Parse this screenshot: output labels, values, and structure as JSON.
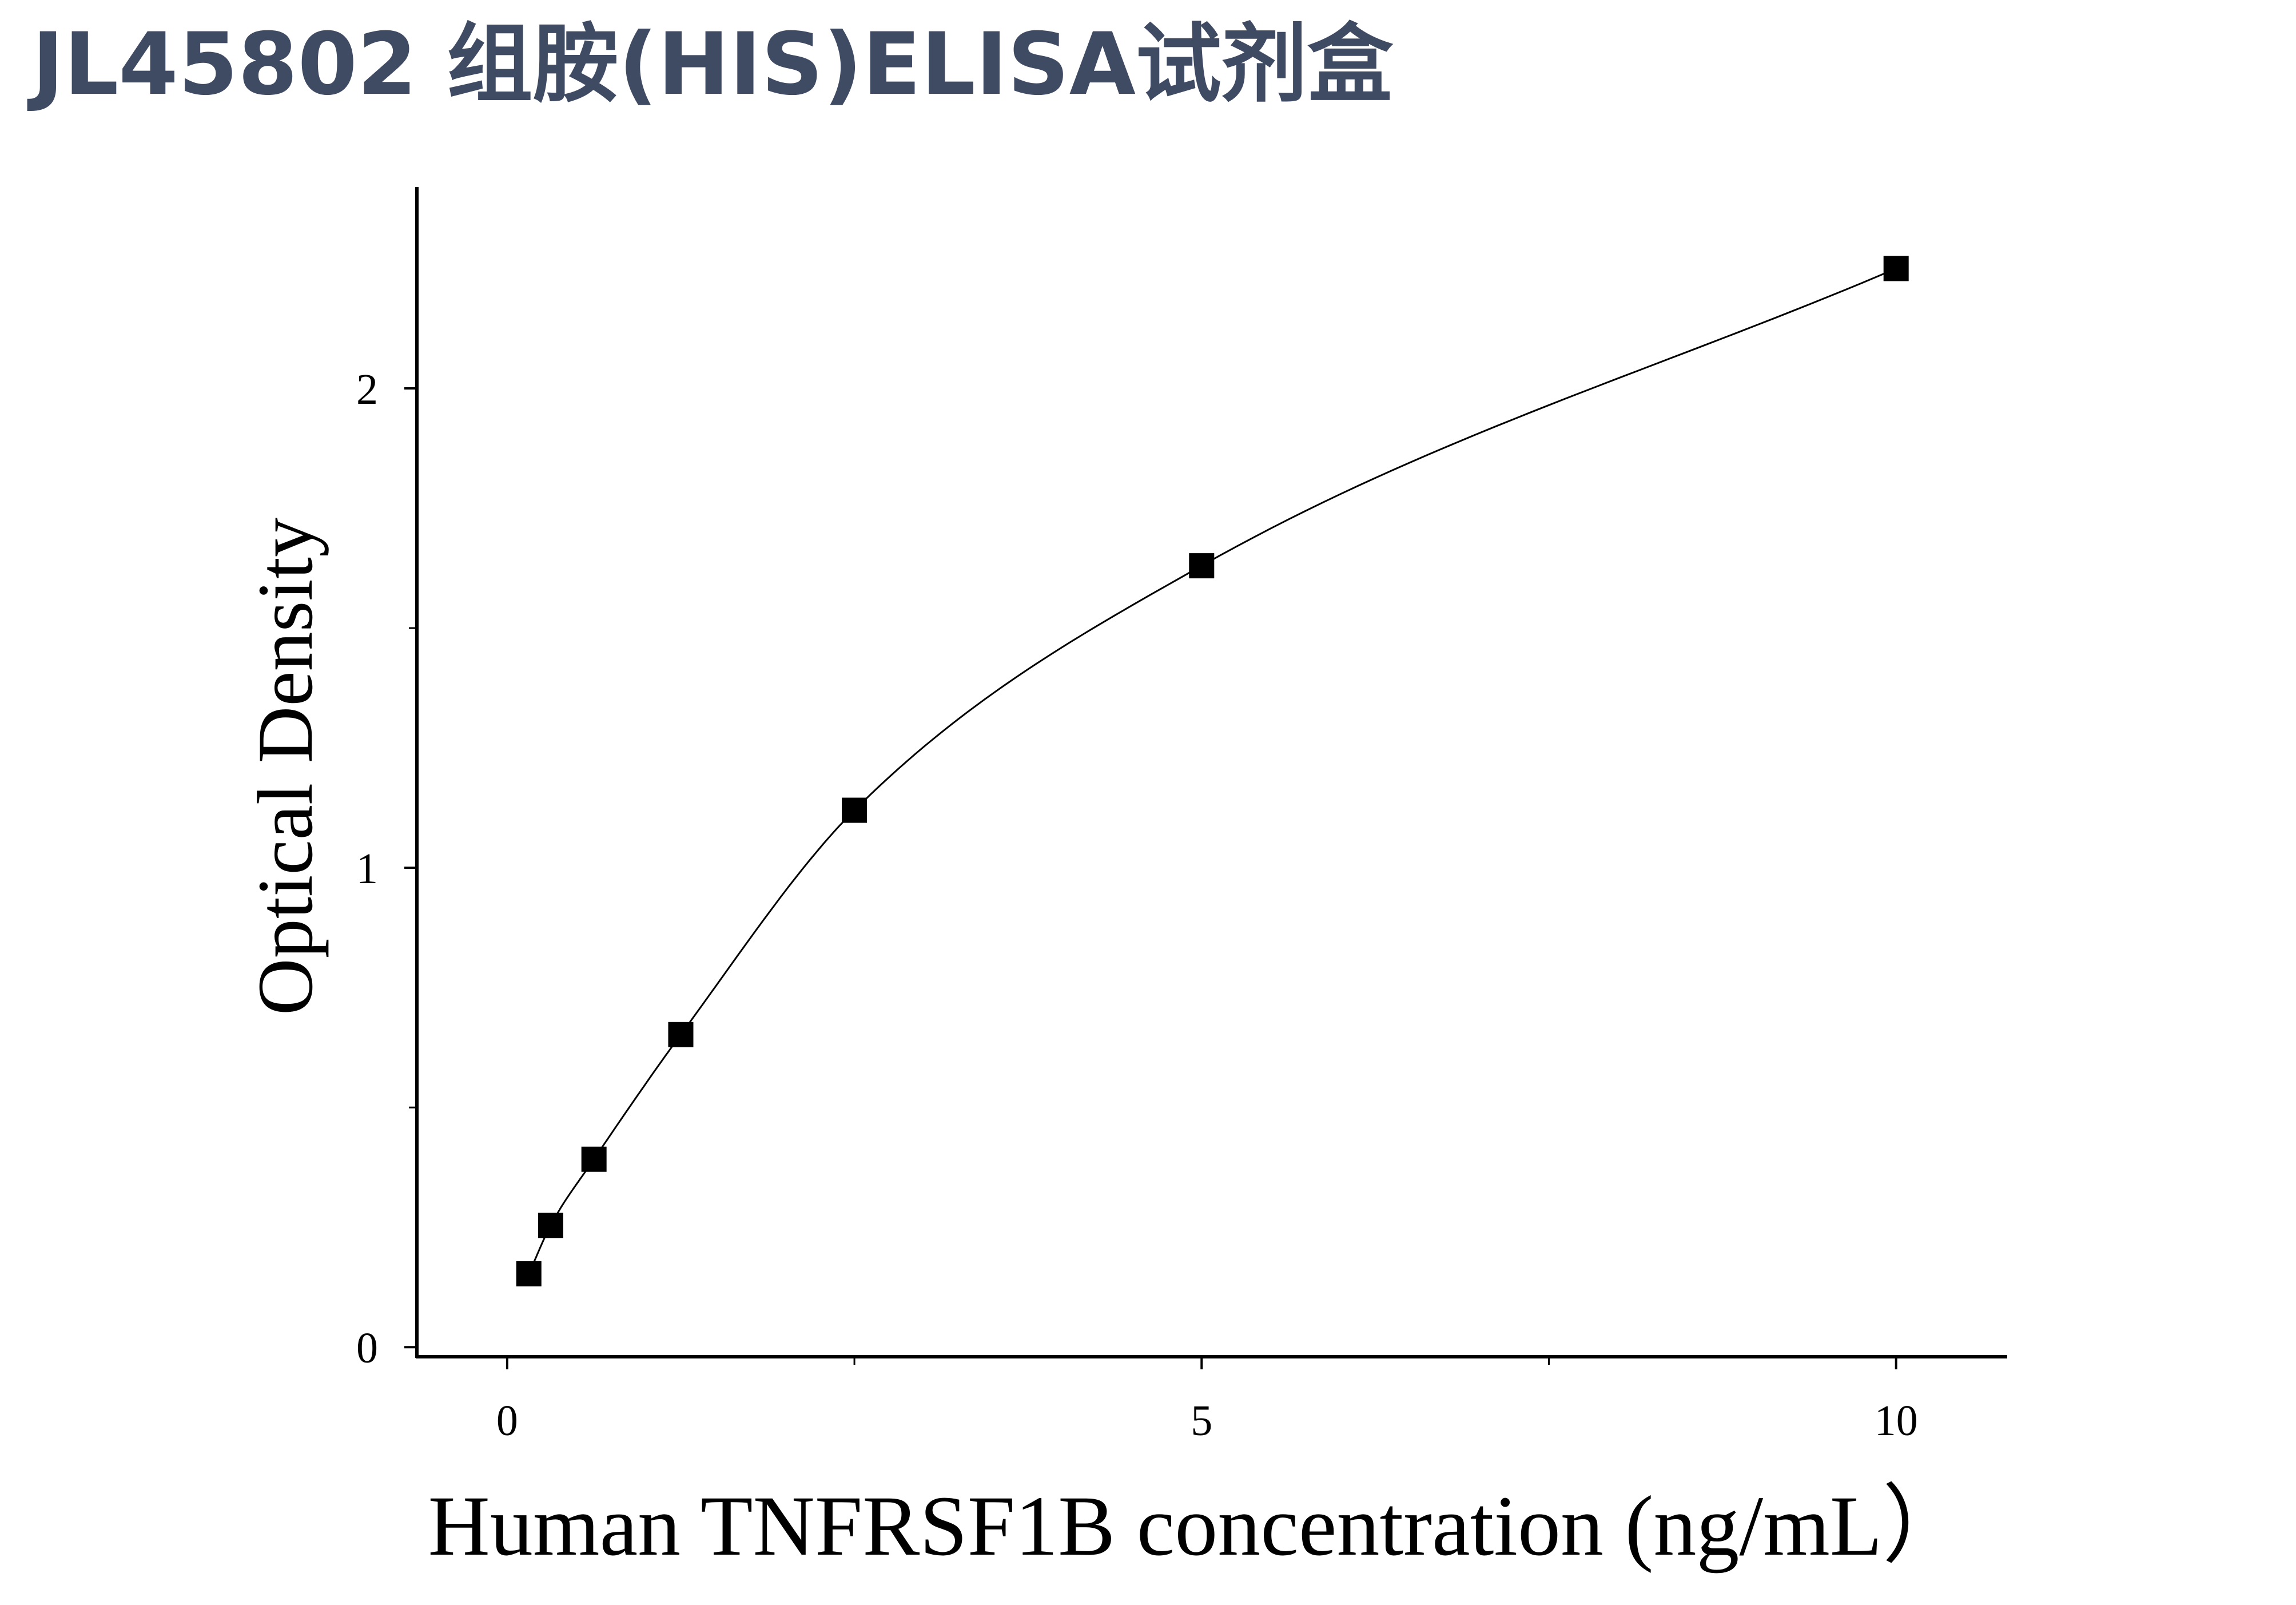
{
  "page": {
    "title": "JL45802 组胺(HIS)ELISA试剂盒"
  },
  "chart_data": {
    "type": "scatter",
    "title": "",
    "xlabel": "Human TNFRSF1B concentration (ng/mL）",
    "ylabel": "Optical Density",
    "xlim": [
      -0.65,
      10.8
    ],
    "ylim": [
      -0.02,
      2.42
    ],
    "x_ticks_major": [
      0,
      5,
      10
    ],
    "x_ticks_minor": [
      2.5,
      7.5
    ],
    "y_ticks_major": [
      0,
      1,
      2
    ],
    "y_ticks_minor": [
      0.5,
      1.5
    ],
    "grid": false,
    "legend": "none",
    "series": [
      {
        "marker": "square",
        "color": "#000000",
        "x": [
          0.156,
          0.313,
          0.625,
          1.25,
          2.5,
          5,
          10
        ],
        "y": [
          0.153,
          0.254,
          0.392,
          0.652,
          1.12,
          1.63,
          2.25
        ]
      }
    ],
    "fit_curve": {
      "model": "4PL",
      "color": "#000000"
    }
  }
}
